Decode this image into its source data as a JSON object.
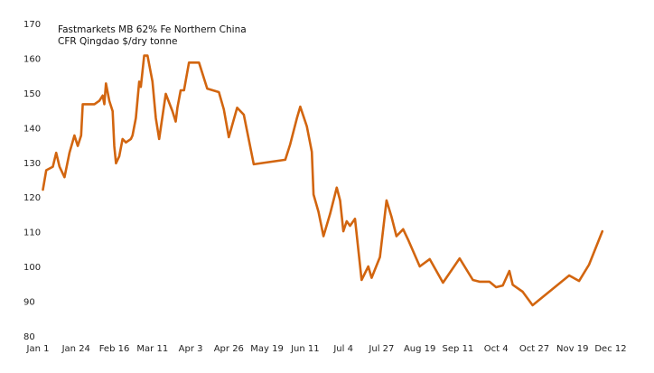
{
  "chart_data": {
    "type": "line",
    "title": "Fastmarkets MB 62% Fe Northern China",
    "subtitle": "CFR Qingdao $/dry tonne",
    "xlim": [
      0,
      345
    ],
    "xticks": [
      {
        "value": 0,
        "label": "Jan 1"
      },
      {
        "value": 23,
        "label": "Jan 24"
      },
      {
        "value": 46,
        "label": "Feb 16"
      },
      {
        "value": 69,
        "label": "Mar 11"
      },
      {
        "value": 92,
        "label": "Apr 3"
      },
      {
        "value": 115,
        "label": "Apr 26"
      },
      {
        "value": 138,
        "label": "May 19"
      },
      {
        "value": 161,
        "label": "Jun 11"
      },
      {
        "value": 184,
        "label": "Jul 4"
      },
      {
        "value": 207,
        "label": "Jul 27"
      },
      {
        "value": 230,
        "label": "Aug 19"
      },
      {
        "value": 253,
        "label": "Sep 11"
      },
      {
        "value": 276,
        "label": "Oct 4"
      },
      {
        "value": 299,
        "label": "Oct 27"
      },
      {
        "value": 322,
        "label": "Nov 19"
      },
      {
        "value": 345,
        "label": "Dec 12"
      }
    ],
    "ylim": [
      80,
      170
    ],
    "yticks": [
      80,
      90,
      100,
      110,
      120,
      130,
      140,
      150,
      160,
      170
    ],
    "grid": false,
    "series": [
      {
        "color": "#d2650f",
        "x": [
          3,
          5,
          9,
          11,
          13,
          16,
          19,
          22,
          24,
          26,
          27,
          31,
          34,
          37,
          39,
          40,
          41,
          43,
          45,
          46,
          47,
          49,
          51,
          53,
          56,
          57,
          59,
          61,
          62,
          64,
          66,
          69,
          71,
          73,
          77,
          81,
          83,
          84,
          86,
          88,
          91,
          94,
          97,
          102,
          109,
          112,
          115,
          120,
          124,
          130,
          149,
          152,
          156,
          158,
          162,
          165,
          166,
          169,
          172,
          176,
          180,
          182,
          184,
          186,
          188,
          191,
          195,
          199,
          201,
          206,
          210,
          213,
          216,
          220,
          223,
          230,
          236,
          244,
          254,
          262,
          266,
          272,
          276,
          280,
          284,
          286,
          292,
          298,
          320,
          326,
          332,
          340
        ],
        "values": [
          122.4,
          128,
          129,
          133,
          129,
          126,
          133,
          138,
          135,
          138,
          147,
          147,
          147,
          148,
          149.5,
          147,
          153,
          148,
          145,
          135,
          130,
          132,
          137,
          136,
          137,
          138,
          143,
          153.5,
          152,
          161,
          161,
          153.5,
          143,
          137,
          150,
          145,
          142,
          146,
          151,
          151,
          159,
          159,
          159,
          151.5,
          150.5,
          145.5,
          137.5,
          146,
          144,
          129.7,
          131,
          135.5,
          143,
          146.3,
          140.6,
          133.3,
          121,
          116,
          109,
          115.4,
          123,
          119.3,
          110.4,
          113.3,
          112,
          114,
          96.4,
          100.3,
          97,
          103,
          119.3,
          114.6,
          109,
          111,
          108,
          100.3,
          102.4,
          95.6,
          102.6,
          96.4,
          95.9,
          95.9,
          94.3,
          94.8,
          99,
          95,
          93,
          89.1,
          97.7,
          96.1,
          100.8,
          110.4
        ]
      }
    ]
  }
}
